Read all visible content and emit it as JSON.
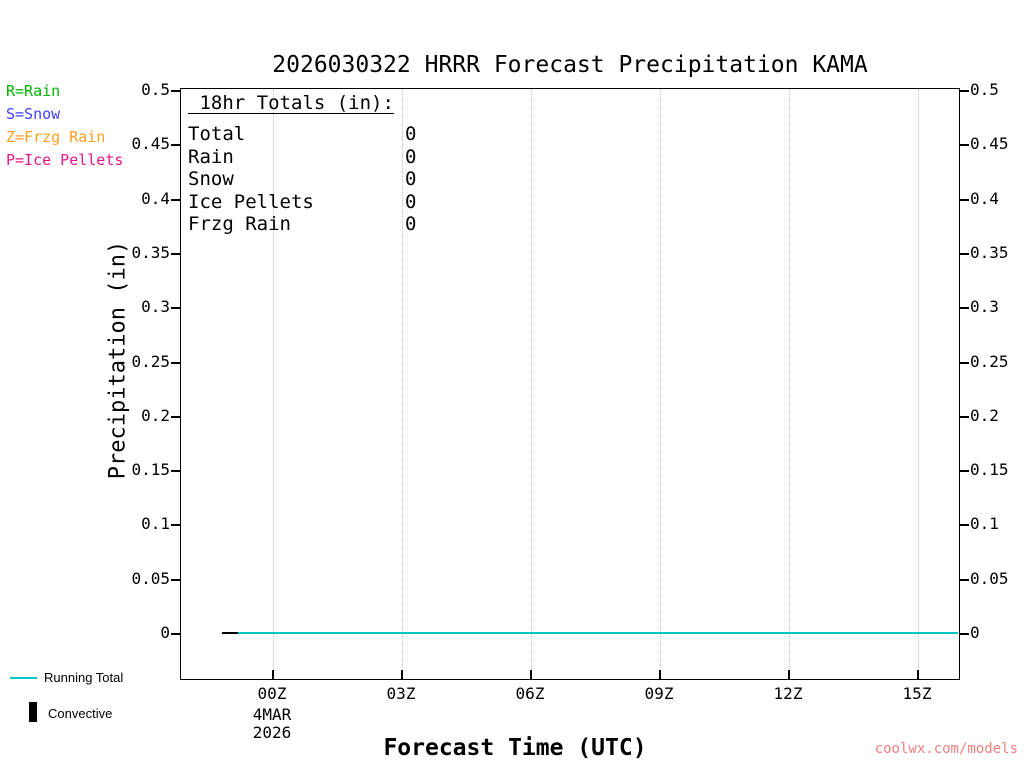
{
  "title": "2026030322 HRRR Forecast Precipitation KAMA",
  "watermark": "coolwx.com/models",
  "watermark_color": "#f08080",
  "legend_types": [
    {
      "label": "R=Rain",
      "color": "#00b400"
    },
    {
      "label": "S=Snow",
      "color": "#4040ff"
    },
    {
      "label": "Z=Frzg Rain",
      "color": "#ffa01e"
    },
    {
      "label": "P=Ice Pellets",
      "color": "#e8148c"
    }
  ],
  "totals_panel": {
    "heading": " 18hr Totals (in):",
    "rows": [
      {
        "label": "Total",
        "value": "0"
      },
      {
        "label": "Rain",
        "value": "0"
      },
      {
        "label": "Snow",
        "value": "0"
      },
      {
        "label": "Ice Pellets",
        "value": "0"
      },
      {
        "label": "Frzg Rain",
        "value": "0"
      }
    ]
  },
  "axes": {
    "y_label": "Precipitation (in)",
    "x_label": "Forecast Time (UTC)",
    "y_ticks": [
      "0",
      "0.05",
      "0.1",
      "0.15",
      "0.2",
      "0.25",
      "0.3",
      "0.35",
      "0.4",
      "0.45",
      "0.5"
    ],
    "x_ticks": [
      "00Z",
      "03Z",
      "06Z",
      "09Z",
      "12Z",
      "15Z"
    ],
    "x_date_line1": "4MAR",
    "x_date_line2": "2026"
  },
  "bottom_legend": [
    {
      "label": "Running Total",
      "swatch": "line",
      "color": "#00c8c8"
    },
    {
      "label": "Convective",
      "swatch": "bar",
      "color": "#000000"
    }
  ],
  "chart_data": {
    "type": "line",
    "title": "2026030322 HRRR Forecast Precipitation KAMA",
    "xlabel": "Forecast Time (UTC)",
    "ylabel": "Precipitation (in)",
    "ylim": [
      0,
      0.5
    ],
    "ytick_step": 0.05,
    "xticks": [
      "00Z",
      "03Z",
      "06Z",
      "09Z",
      "12Z",
      "15Z"
    ],
    "x_start": "22Z 3 MAR 2026",
    "x_end": "16Z 4 MAR 2026",
    "grid": "vertical dotted gridlines at each 3-hour tick",
    "legend_position": "bottom-left outside plot",
    "series": [
      {
        "name": "Running Total",
        "color": "#00c8c8",
        "x": [
          "23Z",
          "00Z",
          "01Z",
          "02Z",
          "03Z",
          "04Z",
          "05Z",
          "06Z",
          "07Z",
          "08Z",
          "09Z",
          "10Z",
          "11Z",
          "12Z",
          "13Z",
          "14Z",
          "15Z",
          "16Z"
        ],
        "values": [
          0,
          0,
          0,
          0,
          0,
          0,
          0,
          0,
          0,
          0,
          0,
          0,
          0,
          0,
          0,
          0,
          0,
          0
        ]
      },
      {
        "name": "Convective",
        "type": "bar",
        "color": "#000000",
        "x": [
          "23Z",
          "00Z",
          "01Z",
          "02Z",
          "03Z",
          "04Z",
          "05Z",
          "06Z",
          "07Z",
          "08Z",
          "09Z",
          "10Z",
          "11Z",
          "12Z",
          "13Z",
          "14Z",
          "15Z",
          "16Z"
        ],
        "values": [
          0,
          0,
          0,
          0,
          0,
          0,
          0,
          0,
          0,
          0,
          0,
          0,
          0,
          0,
          0,
          0,
          0,
          0
        ]
      }
    ]
  }
}
